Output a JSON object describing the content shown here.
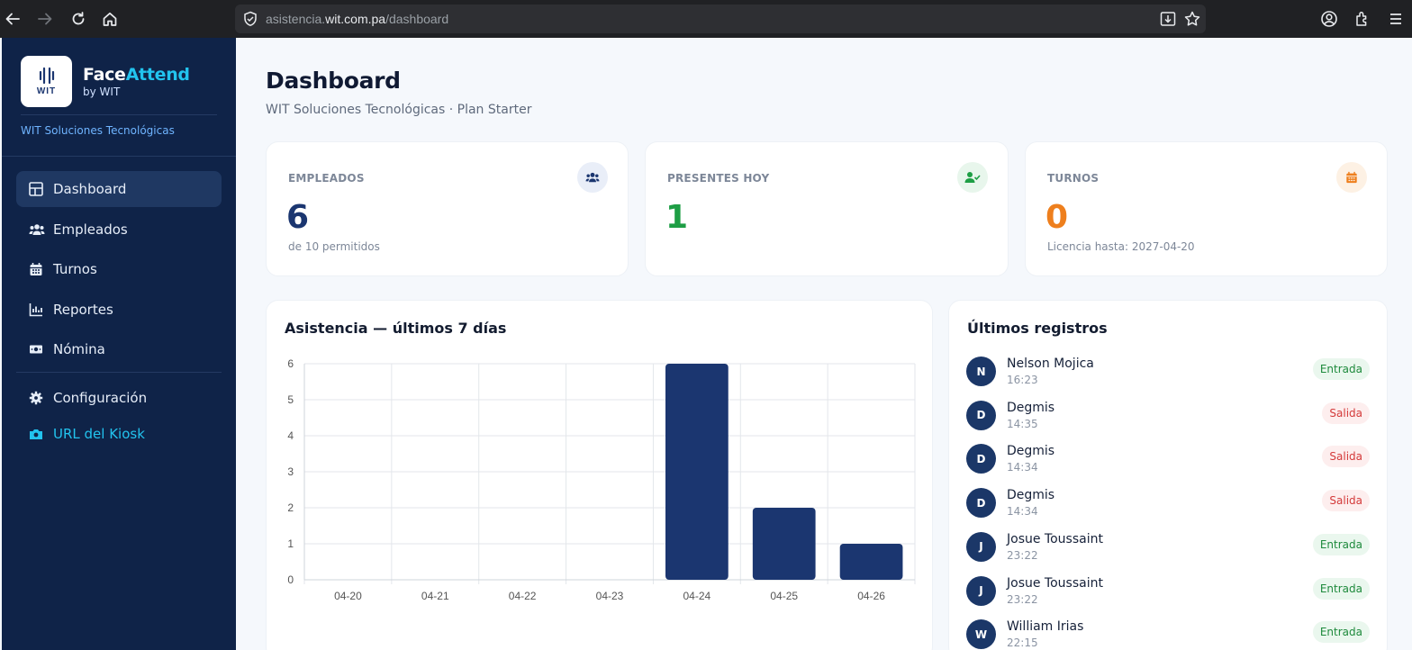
{
  "browser": {
    "url_prefix": "asistencia.",
    "url_domain": "wit.com.pa",
    "url_path": "/dashboard"
  },
  "sidebar": {
    "brand_first": "Face",
    "brand_accent": "Attend",
    "brand_by": "by WIT",
    "logo_text": "WIT",
    "company": "WIT Soluciones Tecnológicas",
    "items": [
      {
        "label": "Dashboard",
        "icon": "dashboard-icon"
      },
      {
        "label": "Empleados",
        "icon": "users-icon"
      },
      {
        "label": "Turnos",
        "icon": "calendar-icon"
      },
      {
        "label": "Reportes",
        "icon": "chart-icon"
      },
      {
        "label": "Nómina",
        "icon": "money-icon"
      },
      {
        "label": "Configuración",
        "icon": "gear-icon"
      },
      {
        "label": "URL del Kiosk",
        "icon": "camera-icon"
      }
    ]
  },
  "header": {
    "title": "Dashboard",
    "subtitle": "WIT Soluciones Tecnológicas · Plan Starter"
  },
  "stats": [
    {
      "label": "EMPLEADOS",
      "value": "6",
      "note": "de 10 permitidos",
      "color": "#1b3670",
      "icon": "users-icon"
    },
    {
      "label": "PRESENTES HOY",
      "value": "1",
      "note": "",
      "color": "#1e9e45",
      "icon": "user-check-icon"
    },
    {
      "label": "TURNOS",
      "value": "0",
      "note": "Licencia hasta: 2027-04-20",
      "color": "#ee7f1d",
      "icon": "calendar-icon"
    }
  ],
  "chart_panel": {
    "title": "Asistencia — últimos 7 días"
  },
  "chart_data": {
    "type": "bar",
    "categories": [
      "04-20",
      "04-21",
      "04-22",
      "04-23",
      "04-24",
      "04-25",
      "04-26"
    ],
    "values": [
      0,
      0,
      0,
      0,
      6,
      2,
      1
    ],
    "ylim": [
      0,
      6
    ],
    "yticks": [
      "0",
      "1",
      "2",
      "3",
      "4",
      "5",
      "6"
    ],
    "grid": true,
    "bar_color": "#1b3670"
  },
  "records_panel": {
    "title": "Últimos registros",
    "items": [
      {
        "initial": "N",
        "name": "Nelson Mojica",
        "time": "16:23",
        "type": "Entrada"
      },
      {
        "initial": "D",
        "name": "Degmis",
        "time": "14:35",
        "type": "Salida"
      },
      {
        "initial": "D",
        "name": "Degmis",
        "time": "14:34",
        "type": "Salida"
      },
      {
        "initial": "D",
        "name": "Degmis",
        "time": "14:34",
        "type": "Salida"
      },
      {
        "initial": "J",
        "name": "Josue Toussaint",
        "time": "23:22",
        "type": "Entrada"
      },
      {
        "initial": "J",
        "name": "Josue Toussaint",
        "time": "23:22",
        "type": "Entrada"
      },
      {
        "initial": "W",
        "name": "William Irias",
        "time": "22:15",
        "type": "Entrada"
      }
    ]
  }
}
